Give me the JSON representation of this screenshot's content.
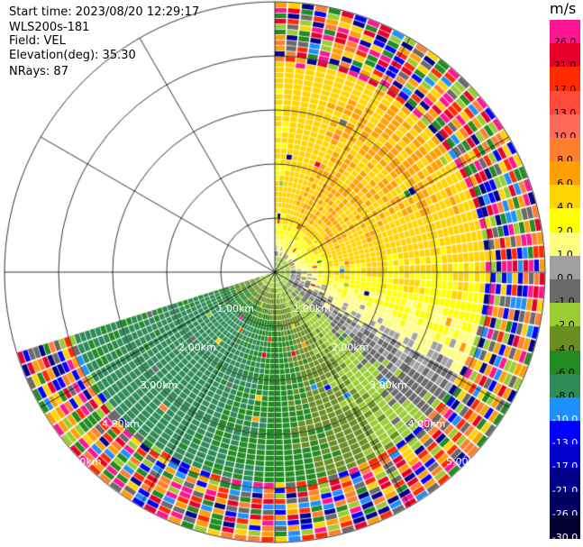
{
  "header": {
    "start_time": "Start time: 2023/08/20 12:29:17",
    "instrument": "WLS200s-181",
    "field": "Field: VEL",
    "elevation": "Elevation(deg): 35.30",
    "nrays": "NRays: 87"
  },
  "colorbar": {
    "title": "m/s",
    "levels": [
      {
        "label": "26.0",
        "color": "#ff1493"
      },
      {
        "label": "21.0",
        "color": "#e8002a"
      },
      {
        "label": "17.0",
        "color": "#ff2a00"
      },
      {
        "label": "13.0",
        "color": "#ff4a3c"
      },
      {
        "label": "10.0",
        "color": "#ff6a5a"
      },
      {
        "label": "8.0",
        "color": "#ff7f30"
      },
      {
        "label": "6.0",
        "color": "#ff9f00"
      },
      {
        "label": "4.0",
        "color": "#ffd400"
      },
      {
        "label": "2.0",
        "color": "#ffff00"
      },
      {
        "label": "1.0",
        "color": "#ffff7f"
      },
      {
        "label": "0.0",
        "color": "#a0a0a0"
      },
      {
        "label": "-1.0",
        "color": "#6a6a6a"
      },
      {
        "label": "-2.0",
        "color": "#9acd32"
      },
      {
        "label": "-4.0",
        "color": "#6b8e23"
      },
      {
        "label": "-6.0",
        "color": "#228b22"
      },
      {
        "label": "-8.0",
        "color": "#2e8b57"
      },
      {
        "label": "-10.0",
        "color": "#1e90ff"
      },
      {
        "label": "-13.0",
        "color": "#0000ff"
      },
      {
        "label": "-17.0",
        "color": "#0000cd"
      },
      {
        "label": "-21.0",
        "color": "#00008b"
      },
      {
        "label": "-26.0",
        "color": "#000060"
      },
      {
        "label": "-30.0",
        "color": "#000030"
      }
    ]
  },
  "chart_data": {
    "type": "heatmap",
    "subtype": "polar-ppi",
    "field": "VEL",
    "units": "m/s",
    "n_rays": 87,
    "range_ring_labels": [
      "1.00km",
      "2.00km",
      "3.00km",
      "4.00km",
      "5.00km"
    ],
    "range_rings_km": [
      1,
      2,
      3,
      4,
      5
    ],
    "max_range_km": 5.0,
    "sector_azimuth_deg": [
      0,
      253
    ],
    "radial_spokes_deg": [
      0,
      30,
      60,
      90,
      120,
      150,
      180,
      210,
      240,
      270,
      300,
      330
    ],
    "data_description": "Radial velocity: positive (yellow/orange, +2 to +6 m/s) toward NE-E; negative (green, -2 to -8 m/s) toward S-SW; near zero (grey) close in; noisy multicolour beyond ~4 km",
    "velocity_zones": [
      {
        "az_from": 0,
        "az_to": 60,
        "r_from_km": 0.3,
        "r_to_km": 1.7,
        "value": 4.0
      },
      {
        "az_from": 60,
        "az_to": 150,
        "r_from_km": 0.3,
        "r_to_km": 2.2,
        "value": 2.0
      },
      {
        "az_from": 150,
        "az_to": 253,
        "r_from_km": 0.3,
        "r_to_km": 3.5,
        "value": -6.0
      }
    ]
  }
}
